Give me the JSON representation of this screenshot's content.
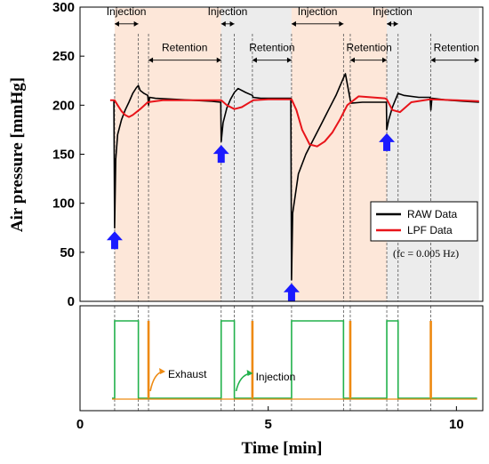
{
  "chart_data": [
    {
      "type": "line",
      "title": "",
      "xlabel": "Time [min]",
      "ylabel": "Air pressure [mmHg]",
      "xlim": [
        0,
        10.7
      ],
      "ylim": [
        0,
        300
      ],
      "x_ticks": [
        0,
        5,
        10
      ],
      "y_ticks": [
        0,
        50,
        100,
        150,
        200,
        250,
        300
      ],
      "grid": false,
      "legend": {
        "placement": "right",
        "entries": [
          "RAW Data",
          "LPF Data"
        ],
        "colors": [
          "#000000",
          "#e8141a"
        ]
      },
      "note": "(fc = 0.005 Hz)",
      "shaded_intervals": [
        {
          "start": 0.92,
          "end": 3.75,
          "color": "#fde7d9"
        },
        {
          "start": 3.75,
          "end": 5.62,
          "color": "#ececec"
        },
        {
          "start": 5.62,
          "end": 8.15,
          "color": "#fde7d9"
        },
        {
          "start": 8.15,
          "end": 10.6,
          "color": "#ececec"
        }
      ],
      "markers": [
        0.92,
        1.55,
        1.82,
        3.75,
        4.1,
        4.58,
        5.62,
        7.0,
        7.18,
        8.15,
        8.45,
        9.32
      ],
      "phase_labels": [
        {
          "text": "Injection",
          "x": 1.23,
          "y": 292,
          "arrow_from": 0.92,
          "arrow_to": 1.55
        },
        {
          "text": "Injection",
          "x": 3.92,
          "y": 292,
          "arrow_from": 3.75,
          "arrow_to": 4.1
        },
        {
          "text": "Injection",
          "x": 6.31,
          "y": 292,
          "arrow_from": 5.62,
          "arrow_to": 7.0
        },
        {
          "text": "Injection",
          "x": 8.3,
          "y": 292,
          "arrow_from": 8.15,
          "arrow_to": 8.45
        },
        {
          "text": "Retention",
          "x": 2.78,
          "y": 255,
          "arrow_from": 1.82,
          "arrow_to": 3.75
        },
        {
          "text": "Retention",
          "x": 5.1,
          "y": 255,
          "arrow_from": 4.58,
          "arrow_to": 5.62
        },
        {
          "text": "Retention",
          "x": 7.68,
          "y": 255,
          "arrow_from": 7.18,
          "arrow_to": 8.15
        },
        {
          "text": "Retention",
          "x": 10.0,
          "y": 255,
          "arrow_from": 9.32,
          "arrow_to": 10.6
        }
      ],
      "start_markers": [
        0.92,
        3.75,
        5.62,
        8.15
      ],
      "series": [
        {
          "name": "RAW Data",
          "color": "#000000",
          "x": [
            0.9,
            0.92,
            0.95,
            1.0,
            1.1,
            1.2,
            1.3,
            1.4,
            1.5,
            1.55,
            1.6,
            1.7,
            1.8,
            1.82,
            1.85,
            2.0,
            2.5,
            3.0,
            3.5,
            3.74,
            3.75,
            3.8,
            3.9,
            4.0,
            4.1,
            4.2,
            4.4,
            4.58,
            4.6,
            4.8,
            5.2,
            5.6,
            5.62,
            5.65,
            5.8,
            6.0,
            6.2,
            6.4,
            6.6,
            6.8,
            7.0,
            7.05,
            7.18,
            7.2,
            7.5,
            8.0,
            8.14,
            8.15,
            8.2,
            8.3,
            8.45,
            8.6,
            9.0,
            9.3,
            9.32,
            9.35,
            9.8,
            10.2,
            10.6
          ],
          "y": [
            205,
            75,
            145,
            170,
            185,
            195,
            203,
            212,
            218,
            220,
            215,
            212,
            210,
            200,
            208,
            207,
            206,
            205,
            204,
            203,
            163,
            182,
            197,
            206,
            213,
            217,
            213,
            210,
            208,
            207,
            207,
            207,
            22,
            90,
            130,
            150,
            165,
            180,
            195,
            210,
            228,
            232,
            205,
            202,
            203,
            203,
            203,
            175,
            185,
            198,
            212,
            210,
            208,
            208,
            195,
            207,
            205,
            204,
            203
          ]
        },
        {
          "name": "LPF Data",
          "color": "#e8141a",
          "x": [
            0.8,
            0.92,
            1.0,
            1.1,
            1.2,
            1.3,
            1.4,
            1.6,
            1.8,
            2.2,
            3.0,
            3.7,
            3.75,
            3.9,
            4.1,
            4.3,
            4.6,
            5.0,
            5.6,
            5.62,
            5.75,
            5.9,
            6.1,
            6.3,
            6.5,
            6.7,
            6.9,
            7.1,
            7.4,
            8.1,
            8.15,
            8.3,
            8.5,
            8.8,
            9.3,
            10.0,
            10.6
          ],
          "y": [
            205,
            205,
            200,
            194,
            190,
            188,
            190,
            196,
            203,
            205,
            205,
            205,
            205,
            200,
            196,
            198,
            205,
            206,
            206,
            206,
            195,
            175,
            160,
            158,
            163,
            172,
            185,
            200,
            209,
            207,
            206,
            195,
            193,
            203,
            206,
            205,
            204
          ]
        }
      ]
    },
    {
      "type": "line",
      "title": "",
      "xlabel": "Time [min]",
      "ylabel": "",
      "xlim": [
        0,
        10.7
      ],
      "x_ticks": [
        0,
        5,
        10
      ],
      "annotations": [
        {
          "text": "Exhaust",
          "color": "#ee8a12"
        },
        {
          "text": "Injection",
          "color": "#22b14c"
        }
      ],
      "series": [
        {
          "name": "Injection valve",
          "color": "#22b14c",
          "pulses": [
            {
              "start": 0.92,
              "end": 1.55
            },
            {
              "start": 3.75,
              "end": 4.1
            },
            {
              "start": 5.62,
              "end": 7.0
            },
            {
              "start": 8.15,
              "end": 8.45
            }
          ]
        },
        {
          "name": "Exhaust valve",
          "color": "#ee8a12",
          "pulses": [
            1.82,
            4.58,
            7.18,
            9.32
          ]
        }
      ]
    }
  ]
}
